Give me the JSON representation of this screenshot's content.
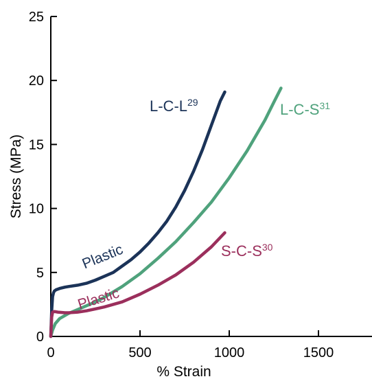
{
  "chart_data": {
    "type": "line",
    "xlabel": "% Strain",
    "ylabel": "Stress (MPa)",
    "xlim": [
      0,
      1800
    ],
    "ylim": [
      0,
      25
    ],
    "xticks": [
      0,
      500,
      1000,
      1500
    ],
    "yticks": [
      0,
      5,
      10,
      15,
      20,
      25
    ],
    "grid": false,
    "series": [
      {
        "name": "L-C-L",
        "superscript": "29",
        "color": "#1b3358",
        "x": [
          0,
          5,
          10,
          15,
          20,
          30,
          50,
          80,
          100,
          150,
          200,
          250,
          300,
          350,
          400,
          450,
          500,
          550,
          600,
          650,
          700,
          750,
          800,
          850,
          900,
          950,
          975
        ],
        "y": [
          0,
          2.0,
          3.1,
          3.4,
          3.55,
          3.65,
          3.75,
          3.85,
          3.9,
          4.0,
          4.15,
          4.4,
          4.7,
          5.0,
          5.5,
          6.0,
          6.6,
          7.3,
          8.1,
          9.0,
          10.1,
          11.4,
          12.9,
          14.6,
          16.5,
          18.4,
          19.1
        ]
      },
      {
        "name": "L-C-S",
        "superscript": "31",
        "color": "#4fa27c",
        "x": [
          0,
          10,
          25,
          50,
          100,
          150,
          200,
          250,
          300,
          400,
          500,
          600,
          700,
          800,
          900,
          1000,
          1100,
          1200,
          1250,
          1290
        ],
        "y": [
          0,
          0.5,
          1.0,
          1.4,
          1.8,
          2.1,
          2.4,
          2.7,
          3.05,
          3.9,
          4.9,
          6.1,
          7.4,
          8.9,
          10.5,
          12.4,
          14.5,
          16.9,
          18.3,
          19.4
        ]
      },
      {
        "name": "S-C-S",
        "superscript": "30",
        "color": "#9b2f5c",
        "x": [
          0,
          5,
          10,
          20,
          40,
          80,
          100,
          150,
          200,
          250,
          300,
          400,
          500,
          600,
          700,
          800,
          900,
          975
        ],
        "y": [
          0,
          1.5,
          1.9,
          1.95,
          1.9,
          1.85,
          1.85,
          1.9,
          2.0,
          2.15,
          2.3,
          2.7,
          3.3,
          4.0,
          4.8,
          5.8,
          7.0,
          8.1
        ]
      }
    ],
    "annotations": [
      {
        "text": "Plastic",
        "x": 300,
        "y": 5.9,
        "rotate": -22,
        "color": "#1b3358"
      },
      {
        "text": "Plastic",
        "x": 275,
        "y": 2.6,
        "rotate": -17,
        "color": "#9b2f5c"
      }
    ]
  }
}
